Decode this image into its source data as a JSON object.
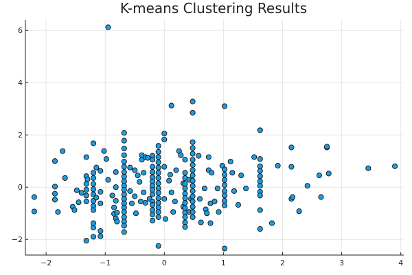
{
  "chart_data": {
    "type": "scatter",
    "title": "K-means Clustering Results",
    "xlabel": "",
    "ylabel": "",
    "xlim": [
      -2.35,
      4.05
    ],
    "ylim": [
      -2.6,
      6.4
    ],
    "x_ticks": [
      -2,
      -1,
      0,
      1,
      2,
      3,
      4
    ],
    "x_tick_labels": [
      "−2",
      "−1",
      "0",
      "1",
      "2",
      "3",
      "4"
    ],
    "y_ticks": [
      -2,
      0,
      2,
      4,
      6
    ],
    "y_tick_labels": [
      "−2",
      "0",
      "2",
      "4",
      "6"
    ],
    "grid": true,
    "legend": "none",
    "colors": {
      "point_fill": "#1f9bde",
      "point_stroke": "#111111",
      "grid": "#e6e6e6"
    },
    "series": [
      {
        "points": [
          [
            -2.2,
            -0.38
          ],
          [
            -2.2,
            -0.93
          ],
          [
            -1.85,
            0.02
          ],
          [
            -1.85,
            -0.25
          ],
          [
            -1.85,
            -0.48
          ],
          [
            -1.85,
            1.0
          ],
          [
            -1.8,
            -0.95
          ],
          [
            -1.72,
            1.38
          ],
          [
            -1.68,
            0.35
          ],
          [
            -1.55,
            -0.75
          ],
          [
            -1.52,
            -0.88
          ],
          [
            -1.48,
            -0.12
          ],
          [
            -1.45,
            -0.58
          ],
          [
            -1.4,
            -0.22
          ],
          [
            -1.32,
            1.15
          ],
          [
            -1.32,
            0.42
          ],
          [
            -1.32,
            0.12
          ],
          [
            -1.32,
            -0.1
          ],
          [
            -1.32,
            -0.32
          ],
          [
            -1.32,
            -0.55
          ],
          [
            -1.32,
            -2.05
          ],
          [
            -1.3,
            0.3
          ],
          [
            -1.2,
            1.68
          ],
          [
            -1.2,
            0.55
          ],
          [
            -1.2,
            0.35
          ],
          [
            -1.2,
            0.12
          ],
          [
            -1.2,
            -0.08
          ],
          [
            -1.2,
            -0.28
          ],
          [
            -1.2,
            -0.52
          ],
          [
            -1.2,
            -0.72
          ],
          [
            -1.2,
            -0.88
          ],
          [
            -1.2,
            -1.38
          ],
          [
            -1.2,
            -1.55
          ],
          [
            -1.2,
            -1.9
          ],
          [
            -1.15,
            0.75
          ],
          [
            -1.15,
            -0.4
          ],
          [
            -1.08,
            0.62
          ],
          [
            -1.08,
            -0.18
          ],
          [
            -1.08,
            -0.62
          ],
          [
            -1.08,
            -1.68
          ],
          [
            -1.08,
            -1.88
          ],
          [
            -1.02,
            1.38
          ],
          [
            -0.98,
            1.08
          ],
          [
            -0.95,
            6.12
          ],
          [
            -0.95,
            0.28
          ],
          [
            -0.88,
            -0.32
          ],
          [
            -0.85,
            -0.78
          ],
          [
            -0.85,
            -1.02
          ],
          [
            -0.82,
            0.58
          ],
          [
            -0.82,
            0.0
          ],
          [
            -0.82,
            -0.52
          ],
          [
            -0.82,
            -1.2
          ],
          [
            -0.8,
            -0.98
          ],
          [
            -0.8,
            -1.32
          ],
          [
            -0.68,
            2.08
          ],
          [
            -0.68,
            1.78
          ],
          [
            -0.68,
            1.48
          ],
          [
            -0.68,
            1.22
          ],
          [
            -0.68,
            0.98
          ],
          [
            -0.68,
            0.78
          ],
          [
            -0.68,
            0.58
          ],
          [
            -0.68,
            0.4
          ],
          [
            -0.68,
            0.22
          ],
          [
            -0.68,
            0.05
          ],
          [
            -0.68,
            -0.1
          ],
          [
            -0.68,
            -0.28
          ],
          [
            -0.68,
            -0.45
          ],
          [
            -0.68,
            -0.62
          ],
          [
            -0.68,
            -0.78
          ],
          [
            -0.68,
            -0.95
          ],
          [
            -0.68,
            -1.15
          ],
          [
            -0.68,
            -1.32
          ],
          [
            -0.68,
            -1.48
          ],
          [
            -0.68,
            -1.72
          ],
          [
            -0.58,
            0.75
          ],
          [
            -0.58,
            -0.15
          ],
          [
            -0.55,
            -0.62
          ],
          [
            -0.5,
            0.65
          ],
          [
            -0.5,
            -0.35
          ],
          [
            -0.48,
            -1.0
          ],
          [
            -0.45,
            0.45
          ],
          [
            -0.42,
            0.2
          ],
          [
            -0.4,
            -0.55
          ],
          [
            -0.38,
            1.22
          ],
          [
            -0.38,
            1.05
          ],
          [
            -0.35,
            0.55
          ],
          [
            -0.35,
            -0.2
          ],
          [
            -0.32,
            1.15
          ],
          [
            -0.32,
            -0.6
          ],
          [
            -0.28,
            1.12
          ],
          [
            -0.25,
            -0.45
          ],
          [
            -0.2,
            1.2
          ],
          [
            -0.2,
            1.05
          ],
          [
            -0.2,
            0.78
          ],
          [
            -0.2,
            0.58
          ],
          [
            -0.2,
            0.38
          ],
          [
            -0.2,
            0.22
          ],
          [
            -0.2,
            0.05
          ],
          [
            -0.2,
            -0.1
          ],
          [
            -0.2,
            -0.28
          ],
          [
            -0.2,
            -0.55
          ],
          [
            -0.2,
            -0.68
          ],
          [
            -0.2,
            -0.88
          ],
          [
            -0.2,
            -1.05
          ],
          [
            -0.2,
            -1.28
          ],
          [
            -0.1,
            1.58
          ],
          [
            -0.1,
            1.35
          ],
          [
            -0.1,
            1.15
          ],
          [
            -0.1,
            0.95
          ],
          [
            -0.1,
            0.75
          ],
          [
            -0.1,
            0.55
          ],
          [
            -0.1,
            0.35
          ],
          [
            -0.1,
            0.15
          ],
          [
            -0.1,
            -0.05
          ],
          [
            -0.1,
            -0.22
          ],
          [
            -0.1,
            -0.42
          ],
          [
            -0.1,
            -0.6
          ],
          [
            -0.1,
            -0.78
          ],
          [
            -0.1,
            -0.95
          ],
          [
            -0.1,
            -1.15
          ],
          [
            -0.1,
            -2.25
          ],
          [
            0.0,
            2.05
          ],
          [
            0.0,
            1.82
          ],
          [
            0.0,
            0.78
          ],
          [
            0.0,
            -0.45
          ],
          [
            0.02,
            -1.22
          ],
          [
            0.08,
            0.25
          ],
          [
            0.1,
            0.48
          ],
          [
            0.12,
            3.12
          ],
          [
            0.12,
            -0.2
          ],
          [
            0.15,
            -0.95
          ],
          [
            0.18,
            -0.55
          ],
          [
            0.2,
            0.65
          ],
          [
            0.25,
            1.38
          ],
          [
            0.28,
            1.22
          ],
          [
            0.32,
            0.15
          ],
          [
            0.32,
            -0.75
          ],
          [
            0.35,
            1.05
          ],
          [
            0.35,
            0.55
          ],
          [
            0.35,
            0.35
          ],
          [
            0.35,
            0.12
          ],
          [
            0.35,
            -0.05
          ],
          [
            0.35,
            -0.25
          ],
          [
            0.35,
            -0.42
          ],
          [
            0.35,
            -0.6
          ],
          [
            0.35,
            -0.8
          ],
          [
            0.35,
            -0.98
          ],
          [
            0.35,
            -1.15
          ],
          [
            0.35,
            -1.35
          ],
          [
            0.35,
            -1.52
          ],
          [
            0.42,
            0.28
          ],
          [
            0.42,
            -0.95
          ],
          [
            0.45,
            -0.45
          ],
          [
            0.48,
            3.28
          ],
          [
            0.48,
            2.85
          ],
          [
            0.48,
            1.72
          ],
          [
            0.48,
            1.5
          ],
          [
            0.48,
            1.28
          ],
          [
            0.48,
            1.05
          ],
          [
            0.48,
            0.85
          ],
          [
            0.48,
            0.65
          ],
          [
            0.48,
            0.45
          ],
          [
            0.48,
            0.25
          ],
          [
            0.48,
            0.05
          ],
          [
            0.48,
            -0.15
          ],
          [
            0.48,
            -0.35
          ],
          [
            0.48,
            -0.55
          ],
          [
            0.48,
            -0.75
          ],
          [
            0.48,
            -0.95
          ],
          [
            0.48,
            -1.15
          ],
          [
            0.58,
            1.2
          ],
          [
            0.6,
            -0.45
          ],
          [
            0.62,
            -1.35
          ],
          [
            0.68,
            -0.05
          ],
          [
            0.7,
            -0.85
          ],
          [
            0.72,
            -1.0
          ],
          [
            0.75,
            1.15
          ],
          [
            0.75,
            0.65
          ],
          [
            0.78,
            -0.62
          ],
          [
            0.78,
            -1.38
          ],
          [
            0.8,
            0.55
          ],
          [
            0.85,
            -0.55
          ],
          [
            0.9,
            -0.05
          ],
          [
            0.92,
            -0.95
          ],
          [
            0.98,
            0.82
          ],
          [
            1.02,
            3.1
          ],
          [
            1.02,
            0.68
          ],
          [
            1.02,
            0.48
          ],
          [
            1.02,
            0.28
          ],
          [
            1.02,
            0.08
          ],
          [
            1.02,
            -0.15
          ],
          [
            1.02,
            -0.32
          ],
          [
            1.02,
            -0.52
          ],
          [
            1.02,
            -0.7
          ],
          [
            1.02,
            -2.35
          ],
          [
            1.12,
            0.98
          ],
          [
            1.15,
            0.55
          ],
          [
            1.18,
            -0.15
          ],
          [
            1.25,
            -0.68
          ],
          [
            1.3,
            0.45
          ],
          [
            1.38,
            -0.05
          ],
          [
            1.52,
            1.15
          ],
          [
            1.62,
            2.18
          ],
          [
            1.62,
            1.08
          ],
          [
            1.62,
            0.8
          ],
          [
            1.62,
            0.62
          ],
          [
            1.62,
            0.42
          ],
          [
            1.62,
            0.22
          ],
          [
            1.62,
            0.05
          ],
          [
            1.62,
            -0.18
          ],
          [
            1.62,
            -0.32
          ],
          [
            1.62,
            -0.88
          ],
          [
            1.62,
            -1.6
          ],
          [
            1.82,
            -1.38
          ],
          [
            1.92,
            0.82
          ],
          [
            2.15,
            1.52
          ],
          [
            2.15,
            0.78
          ],
          [
            2.15,
            -0.45
          ],
          [
            2.17,
            -0.38
          ],
          [
            2.28,
            -0.92
          ],
          [
            2.42,
            0.05
          ],
          [
            2.62,
            0.45
          ],
          [
            2.65,
            -0.38
          ],
          [
            2.75,
            1.52
          ],
          [
            2.75,
            1.55
          ],
          [
            2.78,
            0.52
          ],
          [
            3.45,
            0.72
          ],
          [
            3.9,
            0.8
          ]
        ]
      }
    ]
  }
}
